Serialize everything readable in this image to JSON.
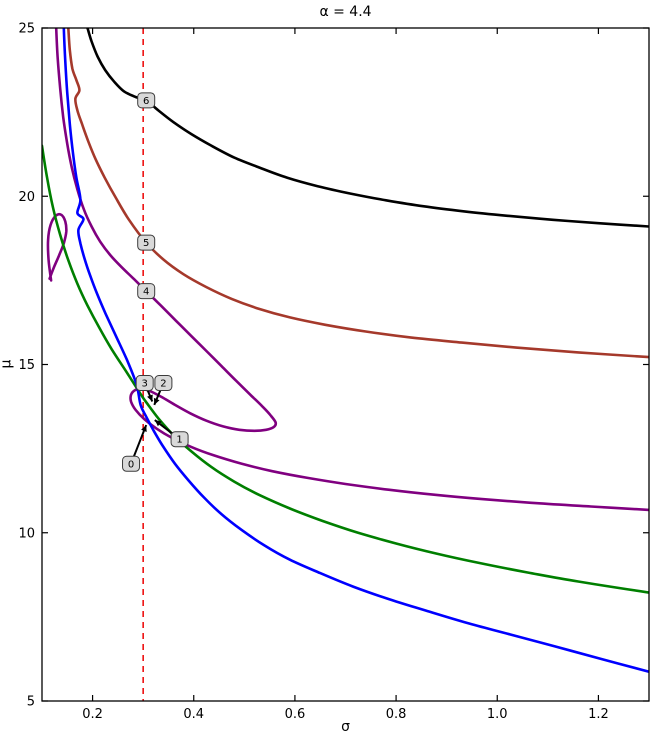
{
  "chart_data": {
    "type": "line",
    "title": "α = 4.4",
    "xlabel": "σ",
    "ylabel": "μ",
    "xlim": [
      0.1,
      1.3
    ],
    "ylim": [
      5,
      25
    ],
    "xticks": [
      0.2,
      0.4,
      0.6,
      0.8,
      1.0,
      1.2
    ],
    "xtick_labels": [
      "0.2",
      "0.4",
      "0.6",
      "0.8",
      "1.0",
      "1.2"
    ],
    "yticks": [
      5,
      10,
      15,
      20,
      25
    ],
    "ytick_labels": [
      "5",
      "10",
      "15",
      "20",
      "25"
    ],
    "grid": false,
    "legend": "none",
    "background": "#ffffff",
    "axes_color": "#000000",
    "vline": {
      "x": 0.3,
      "color": "#ee1111",
      "dash": "dashed",
      "width": 1.6
    },
    "series": [
      {
        "name": "contour-6-black",
        "color": "#000000",
        "width": 2.6,
        "segments": [
          [
            [
              0.19,
              25.0
            ],
            [
              0.198,
              24.6
            ],
            [
              0.21,
              24.15
            ],
            [
              0.225,
              23.75
            ],
            [
              0.243,
              23.4
            ],
            [
              0.262,
              23.12
            ],
            [
              0.285,
              22.95
            ],
            [
              0.306,
              22.85
            ],
            [
              0.33,
              22.55
            ],
            [
              0.36,
              22.2
            ],
            [
              0.395,
              21.85
            ],
            [
              0.435,
              21.5
            ],
            [
              0.48,
              21.15
            ],
            [
              0.53,
              20.85
            ],
            [
              0.585,
              20.55
            ],
            [
              0.645,
              20.3
            ],
            [
              0.71,
              20.08
            ],
            [
              0.78,
              19.88
            ],
            [
              0.855,
              19.7
            ],
            [
              0.935,
              19.55
            ],
            [
              1.02,
              19.42
            ],
            [
              1.11,
              19.3
            ],
            [
              1.2,
              19.2
            ],
            [
              1.3,
              19.1
            ]
          ]
        ]
      },
      {
        "name": "contour-5-brown",
        "color": "#a5392b",
        "width": 2.6,
        "segments": [
          [
            [
              0.152,
              25.0
            ],
            [
              0.155,
              24.35
            ],
            [
              0.16,
              23.8
            ],
            [
              0.168,
              23.45
            ],
            [
              0.174,
              23.15
            ],
            [
              0.166,
              22.9
            ],
            [
              0.17,
              22.55
            ],
            [
              0.179,
              22.15
            ],
            [
              0.191,
              21.65
            ],
            [
              0.206,
              21.1
            ],
            [
              0.224,
              20.55
            ],
            [
              0.246,
              19.95
            ],
            [
              0.272,
              19.3
            ],
            [
              0.306,
              18.62
            ],
            [
              0.34,
              18.12
            ],
            [
              0.38,
              17.68
            ],
            [
              0.425,
              17.3
            ],
            [
              0.475,
              16.95
            ],
            [
              0.53,
              16.65
            ],
            [
              0.59,
              16.4
            ],
            [
              0.66,
              16.18
            ],
            [
              0.74,
              15.98
            ],
            [
              0.83,
              15.8
            ],
            [
              0.93,
              15.65
            ],
            [
              1.04,
              15.5
            ],
            [
              1.16,
              15.36
            ],
            [
              1.3,
              15.22
            ]
          ]
        ]
      },
      {
        "name": "contour-purple-loop",
        "color": "#800080",
        "width": 2.6,
        "segments": [
          [
            [
              0.128,
              25.0
            ],
            [
              0.131,
              24.1
            ],
            [
              0.136,
              23.2
            ],
            [
              0.142,
              22.35
            ],
            [
              0.15,
              21.55
            ],
            [
              0.159,
              20.85
            ],
            [
              0.17,
              20.2
            ],
            [
              0.183,
              19.6
            ],
            [
              0.198,
              19.1
            ],
            [
              0.215,
              18.65
            ],
            [
              0.235,
              18.25
            ],
            [
              0.257,
              17.9
            ],
            [
              0.281,
              17.55
            ],
            [
              0.306,
              17.18
            ],
            [
              0.335,
              16.75
            ],
            [
              0.365,
              16.3
            ],
            [
              0.395,
              15.85
            ],
            [
              0.425,
              15.4
            ],
            [
              0.455,
              14.95
            ],
            [
              0.485,
              14.5
            ],
            [
              0.512,
              14.1
            ],
            [
              0.536,
              13.75
            ],
            [
              0.553,
              13.47
            ],
            [
              0.562,
              13.27
            ],
            [
              0.558,
              13.14
            ],
            [
              0.543,
              13.06
            ],
            [
              0.52,
              13.03
            ],
            [
              0.49,
              13.06
            ],
            [
              0.458,
              13.16
            ],
            [
              0.425,
              13.33
            ],
            [
              0.393,
              13.55
            ],
            [
              0.363,
              13.8
            ],
            [
              0.337,
              14.03
            ],
            [
              0.315,
              14.2
            ],
            [
              0.297,
              14.28
            ],
            [
              0.284,
              14.24
            ],
            [
              0.276,
              14.1
            ],
            [
              0.276,
              13.9
            ],
            [
              0.285,
              13.65
            ],
            [
              0.302,
              13.38
            ],
            [
              0.326,
              13.1
            ],
            [
              0.357,
              12.82
            ],
            [
              0.395,
              12.55
            ],
            [
              0.44,
              12.3
            ],
            [
              0.495,
              12.05
            ],
            [
              0.555,
              11.83
            ],
            [
              0.625,
              11.63
            ],
            [
              0.7,
              11.45
            ],
            [
              0.785,
              11.28
            ],
            [
              0.875,
              11.13
            ],
            [
              0.97,
              11.0
            ],
            [
              1.075,
              10.88
            ],
            [
              1.185,
              10.78
            ],
            [
              1.3,
              10.68
            ]
          ],
          [
            [
              0.118,
              17.5
            ],
            [
              0.113,
              18.1
            ],
            [
              0.112,
              18.7
            ],
            [
              0.117,
              19.15
            ],
            [
              0.127,
              19.42
            ],
            [
              0.138,
              19.45
            ],
            [
              0.146,
              19.25
            ],
            [
              0.148,
              18.95
            ],
            [
              0.143,
              18.6
            ],
            [
              0.134,
              18.25
            ],
            [
              0.124,
              17.9
            ],
            [
              0.115,
              17.55
            ]
          ]
        ]
      },
      {
        "name": "contour-1-green",
        "color": "#007f00",
        "width": 2.6,
        "segments": [
          [
            [
              0.1,
              21.5
            ],
            [
              0.11,
              20.55
            ],
            [
              0.122,
              19.65
            ],
            [
              0.136,
              18.85
            ],
            [
              0.152,
              18.1
            ],
            [
              0.17,
              17.4
            ],
            [
              0.19,
              16.75
            ],
            [
              0.213,
              16.1
            ],
            [
              0.238,
              15.45
            ],
            [
              0.266,
              14.8
            ],
            [
              0.296,
              14.1
            ],
            [
              0.306,
              13.88
            ],
            [
              0.33,
              13.4
            ],
            [
              0.36,
              12.9
            ],
            [
              0.395,
              12.42
            ],
            [
              0.435,
              11.95
            ],
            [
              0.48,
              11.52
            ],
            [
              0.53,
              11.12
            ],
            [
              0.59,
              10.72
            ],
            [
              0.655,
              10.35
            ],
            [
              0.725,
              10.0
            ],
            [
              0.8,
              9.68
            ],
            [
              0.88,
              9.38
            ],
            [
              0.965,
              9.1
            ],
            [
              1.06,
              8.82
            ],
            [
              1.16,
              8.55
            ],
            [
              1.3,
              8.22
            ]
          ]
        ]
      },
      {
        "name": "contour-0-blue",
        "color": "#0000ff",
        "width": 2.6,
        "segments": [
          [
            [
              0.143,
              25.0
            ],
            [
              0.146,
              24.0
            ],
            [
              0.15,
              23.05
            ],
            [
              0.155,
              22.15
            ],
            [
              0.161,
              21.3
            ],
            [
              0.168,
              20.55
            ],
            [
              0.176,
              19.9
            ],
            [
              0.17,
              19.5
            ],
            [
              0.182,
              19.32
            ],
            [
              0.172,
              19.0
            ],
            [
              0.176,
              18.6
            ],
            [
              0.184,
              18.15
            ],
            [
              0.195,
              17.65
            ],
            [
              0.209,
              17.1
            ],
            [
              0.226,
              16.5
            ],
            [
              0.246,
              15.85
            ],
            [
              0.269,
              15.1
            ],
            [
              0.287,
              14.4
            ],
            [
              0.295,
              13.8
            ],
            [
              0.306,
              13.45
            ],
            [
              0.322,
              13.0
            ],
            [
              0.34,
              12.55
            ],
            [
              0.363,
              12.05
            ],
            [
              0.39,
              11.55
            ],
            [
              0.42,
              11.05
            ],
            [
              0.455,
              10.55
            ],
            [
              0.495,
              10.08
            ],
            [
              0.54,
              9.62
            ],
            [
              0.59,
              9.2
            ],
            [
              0.65,
              8.8
            ],
            [
              0.715,
              8.4
            ],
            [
              0.785,
              8.03
            ],
            [
              0.86,
              7.68
            ],
            [
              0.94,
              7.32
            ],
            [
              1.025,
              6.98
            ],
            [
              1.115,
              6.62
            ],
            [
              1.205,
              6.25
            ],
            [
              1.3,
              5.87
            ]
          ]
        ]
      }
    ],
    "annotations": [
      {
        "label": "0",
        "box_xy": [
          0.276,
          12.05
        ],
        "target_xy": [
          0.306,
          13.2
        ]
      },
      {
        "label": "1",
        "box_xy": [
          0.372,
          12.78
        ],
        "target_xy": [
          0.323,
          13.35
        ]
      },
      {
        "label": "2",
        "box_xy": [
          0.34,
          14.45
        ],
        "target_xy": [
          0.322,
          13.8
        ]
      },
      {
        "label": "3",
        "box_xy": [
          0.303,
          14.45
        ],
        "target_xy": [
          0.318,
          13.9
        ]
      },
      {
        "label": "4",
        "box_xy": [
          0.306,
          17.18
        ],
        "target_xy": null
      },
      {
        "label": "5",
        "box_xy": [
          0.306,
          18.62
        ],
        "target_xy": null
      },
      {
        "label": "6",
        "box_xy": [
          0.306,
          22.85
        ],
        "target_xy": null
      }
    ],
    "annotation_style": {
      "fill": "#d9d9d9",
      "stroke": "#3c3c3c",
      "text_color": "#000000"
    }
  }
}
